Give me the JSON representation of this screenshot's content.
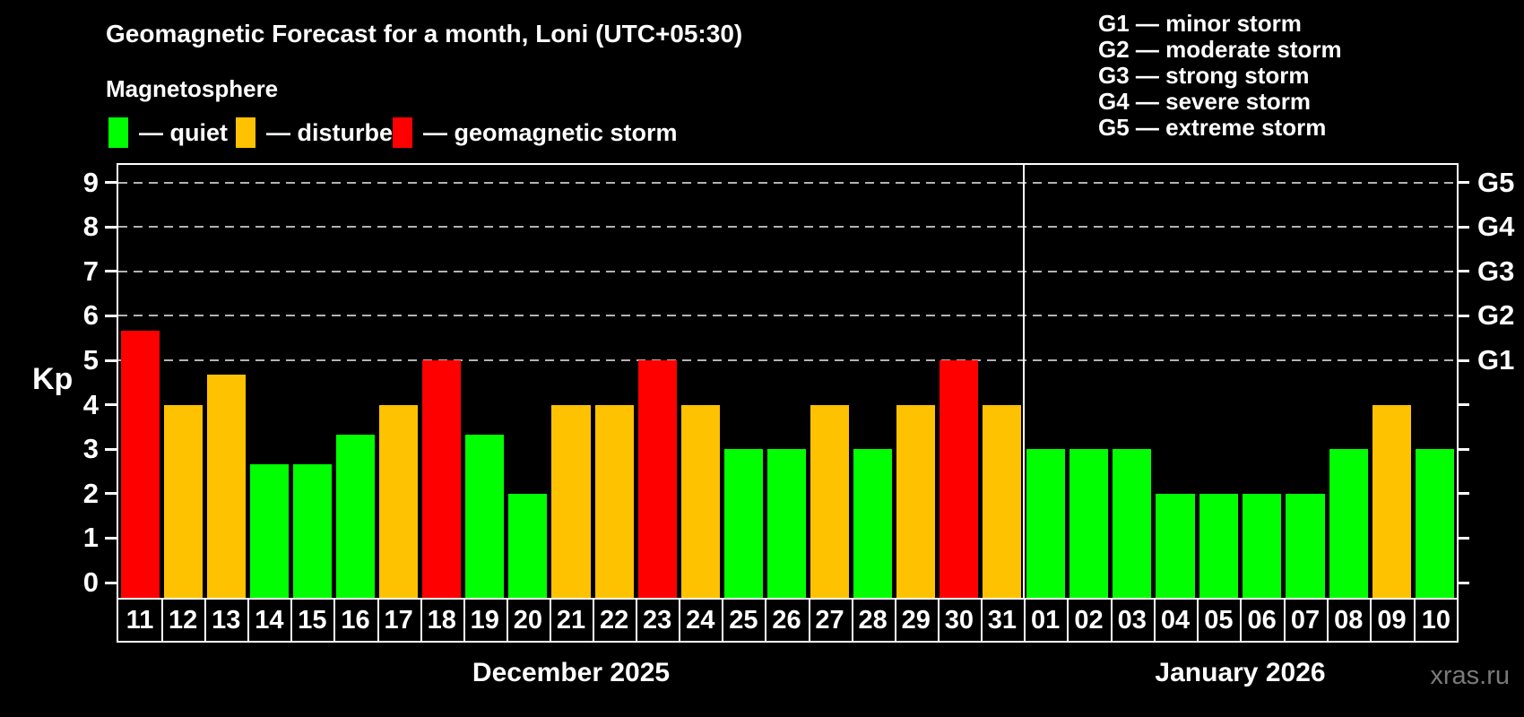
{
  "title": "Geomagnetic Forecast for a month, Loni (UTC+05:30)",
  "subtitle": "Magnetosphere",
  "legend": {
    "items": [
      {
        "key": "quiet",
        "label": "— quiet",
        "color": "#00ff00"
      },
      {
        "key": "disturbed",
        "label": "— disturbed",
        "color": "#ffc200"
      },
      {
        "key": "storm",
        "label": "— geomagnetic storm",
        "color": "#ff0000"
      }
    ]
  },
  "g_legend": {
    "items": [
      "G1 — minor storm",
      "G2 — moderate storm",
      "G3 — strong storm",
      "G4 — severe storm",
      "G5 — extreme storm"
    ]
  },
  "watermark": "xras.ru",
  "chart_data": {
    "type": "bar",
    "title": "Geomagnetic Forecast for a month, Loni (UTC+05:30)",
    "xlabel": "",
    "ylabel": "Kp",
    "ylim": [
      0,
      9
    ],
    "yticks": [
      0,
      1,
      2,
      3,
      4,
      5,
      6,
      7,
      8,
      9
    ],
    "gridlines_at": [
      5,
      6,
      7,
      8,
      9
    ],
    "grid": "dashed horizontal lines at Kp 5-9 only",
    "legend_position": "top-left",
    "right_axis_labels": [
      {
        "kp": 9,
        "label": "G5"
      },
      {
        "kp": 8,
        "label": "G4"
      },
      {
        "kp": 7,
        "label": "G3"
      },
      {
        "kp": 6,
        "label": "G2"
      },
      {
        "kp": 5,
        "label": "G1"
      }
    ],
    "status_colors": {
      "quiet": "#00ff00",
      "disturbed": "#ffc200",
      "storm": "#ff0000"
    },
    "sections": [
      {
        "month_label": "December 2025",
        "days": [
          {
            "day": "11",
            "kp": 5.67,
            "status": "storm"
          },
          {
            "day": "12",
            "kp": 4.0,
            "status": "disturbed"
          },
          {
            "day": "13",
            "kp": 4.67,
            "status": "disturbed"
          },
          {
            "day": "14",
            "kp": 2.67,
            "status": "quiet"
          },
          {
            "day": "15",
            "kp": 2.67,
            "status": "quiet"
          },
          {
            "day": "16",
            "kp": 3.33,
            "status": "quiet"
          },
          {
            "day": "17",
            "kp": 4.0,
            "status": "disturbed"
          },
          {
            "day": "18",
            "kp": 5.0,
            "status": "storm"
          },
          {
            "day": "19",
            "kp": 3.33,
            "status": "quiet"
          },
          {
            "day": "20",
            "kp": 2.0,
            "status": "quiet"
          },
          {
            "day": "21",
            "kp": 4.0,
            "status": "disturbed"
          },
          {
            "day": "22",
            "kp": 4.0,
            "status": "disturbed"
          },
          {
            "day": "23",
            "kp": 5.0,
            "status": "storm"
          },
          {
            "day": "24",
            "kp": 4.0,
            "status": "disturbed"
          },
          {
            "day": "25",
            "kp": 3.0,
            "status": "quiet"
          },
          {
            "day": "26",
            "kp": 3.0,
            "status": "quiet"
          },
          {
            "day": "27",
            "kp": 4.0,
            "status": "disturbed"
          },
          {
            "day": "28",
            "kp": 3.0,
            "status": "quiet"
          },
          {
            "day": "29",
            "kp": 4.0,
            "status": "disturbed"
          },
          {
            "day": "30",
            "kp": 5.0,
            "status": "storm"
          },
          {
            "day": "31",
            "kp": 4.0,
            "status": "disturbed"
          }
        ]
      },
      {
        "month_label": "January 2026",
        "days": [
          {
            "day": "01",
            "kp": 3.0,
            "status": "quiet"
          },
          {
            "day": "02",
            "kp": 3.0,
            "status": "quiet"
          },
          {
            "day": "03",
            "kp": 3.0,
            "status": "quiet"
          },
          {
            "day": "04",
            "kp": 2.0,
            "status": "quiet"
          },
          {
            "day": "05",
            "kp": 2.0,
            "status": "quiet"
          },
          {
            "day": "06",
            "kp": 2.0,
            "status": "quiet"
          },
          {
            "day": "07",
            "kp": 2.0,
            "status": "quiet"
          },
          {
            "day": "08",
            "kp": 3.0,
            "status": "quiet"
          },
          {
            "day": "09",
            "kp": 4.0,
            "status": "disturbed"
          },
          {
            "day": "10",
            "kp": 3.0,
            "status": "quiet"
          }
        ]
      }
    ]
  }
}
